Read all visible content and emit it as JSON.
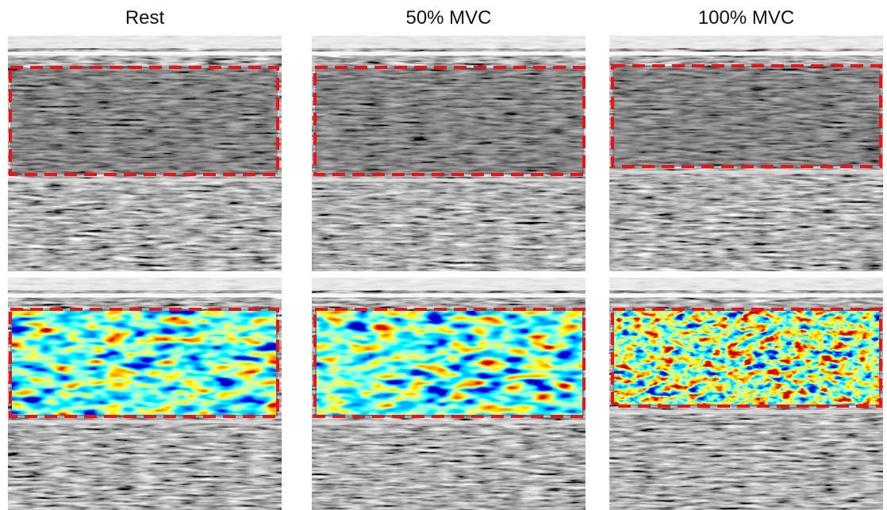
{
  "panel_titles": [
    "Rest",
    "50% MVC",
    "100% MVC"
  ]
}
